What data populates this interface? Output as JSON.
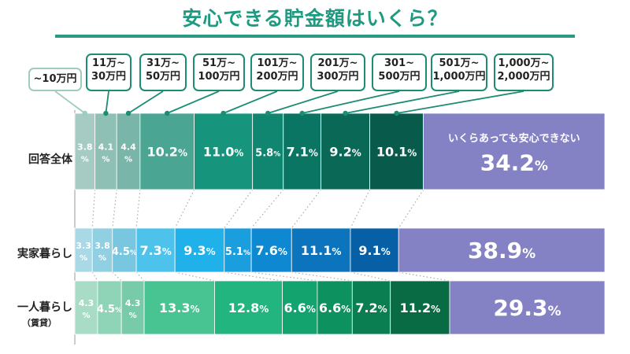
{
  "title": "安心できる貯金額はいくら？",
  "legend": [
    {
      "line1": "~10万円",
      "line2": ""
    },
    {
      "line1": "11万~",
      "line2": "30万円"
    },
    {
      "line1": "31万~",
      "line2": "50万円"
    },
    {
      "line1": "51万~",
      "line2": "100万円"
    },
    {
      "line1": "101万~",
      "line2": "200万円"
    },
    {
      "line1": "201万~",
      "line2": "300万円"
    },
    {
      "line1": "301~",
      "line2": "500万円"
    },
    {
      "line1": "501万~",
      "line2": "1,000万円"
    },
    {
      "line1": "1,000万~",
      "line2": "2,000万円"
    }
  ],
  "chart_data": {
    "type": "bar",
    "stacked": true,
    "orientation": "horizontal",
    "unit": "%",
    "categories": [
      "~10万円",
      "11万~30万円",
      "31万~50万円",
      "51万~100万円",
      "101万~200万円",
      "201万~300万円",
      "301~500万円",
      "501万~1,000万円",
      "1,000万~2,000万円",
      "いくらあっても安心できない"
    ],
    "special_category_label": "いくらあっても安心できない",
    "rows": [
      {
        "label": "回答全体",
        "sublabel": "",
        "values": [
          3.8,
          4.1,
          4.4,
          10.2,
          11.0,
          5.8,
          7.1,
          9.2,
          10.1,
          34.2
        ]
      },
      {
        "label": "実家暮らし",
        "sublabel": "",
        "values": [
          3.3,
          3.8,
          4.5,
          7.3,
          9.3,
          5.1,
          7.6,
          11.1,
          9.1,
          38.9
        ]
      },
      {
        "label": "一人暮らし",
        "sublabel": "（賃貸）",
        "values": [
          4.3,
          4.5,
          4.3,
          13.3,
          12.8,
          6.6,
          6.6,
          7.2,
          11.2,
          29.3
        ]
      }
    ],
    "colors": {
      "row0": [
        "#a5cbc3",
        "#8fc0b6",
        "#79b5a9",
        "#4aa592",
        "#17947c",
        "#10856f",
        "#0b7563",
        "#0a6856",
        "#085b4b",
        "#8481c4"
      ],
      "row1": [
        "#a9d9e6",
        "#91d0e3",
        "#78c6e0",
        "#4dc3ec",
        "#21b1ea",
        "#1a9ede",
        "#0e88d0",
        "#0b74bc",
        "#075fa5",
        "#8481c4"
      ],
      "row2": [
        "#a9dcc6",
        "#90d4b7",
        "#78cba9",
        "#48c392",
        "#22b57f",
        "#12a36f",
        "#0c915f",
        "#0a7e51",
        "#086b44",
        "#8481c4"
      ],
      "accent": "#1d9a80"
    }
  }
}
